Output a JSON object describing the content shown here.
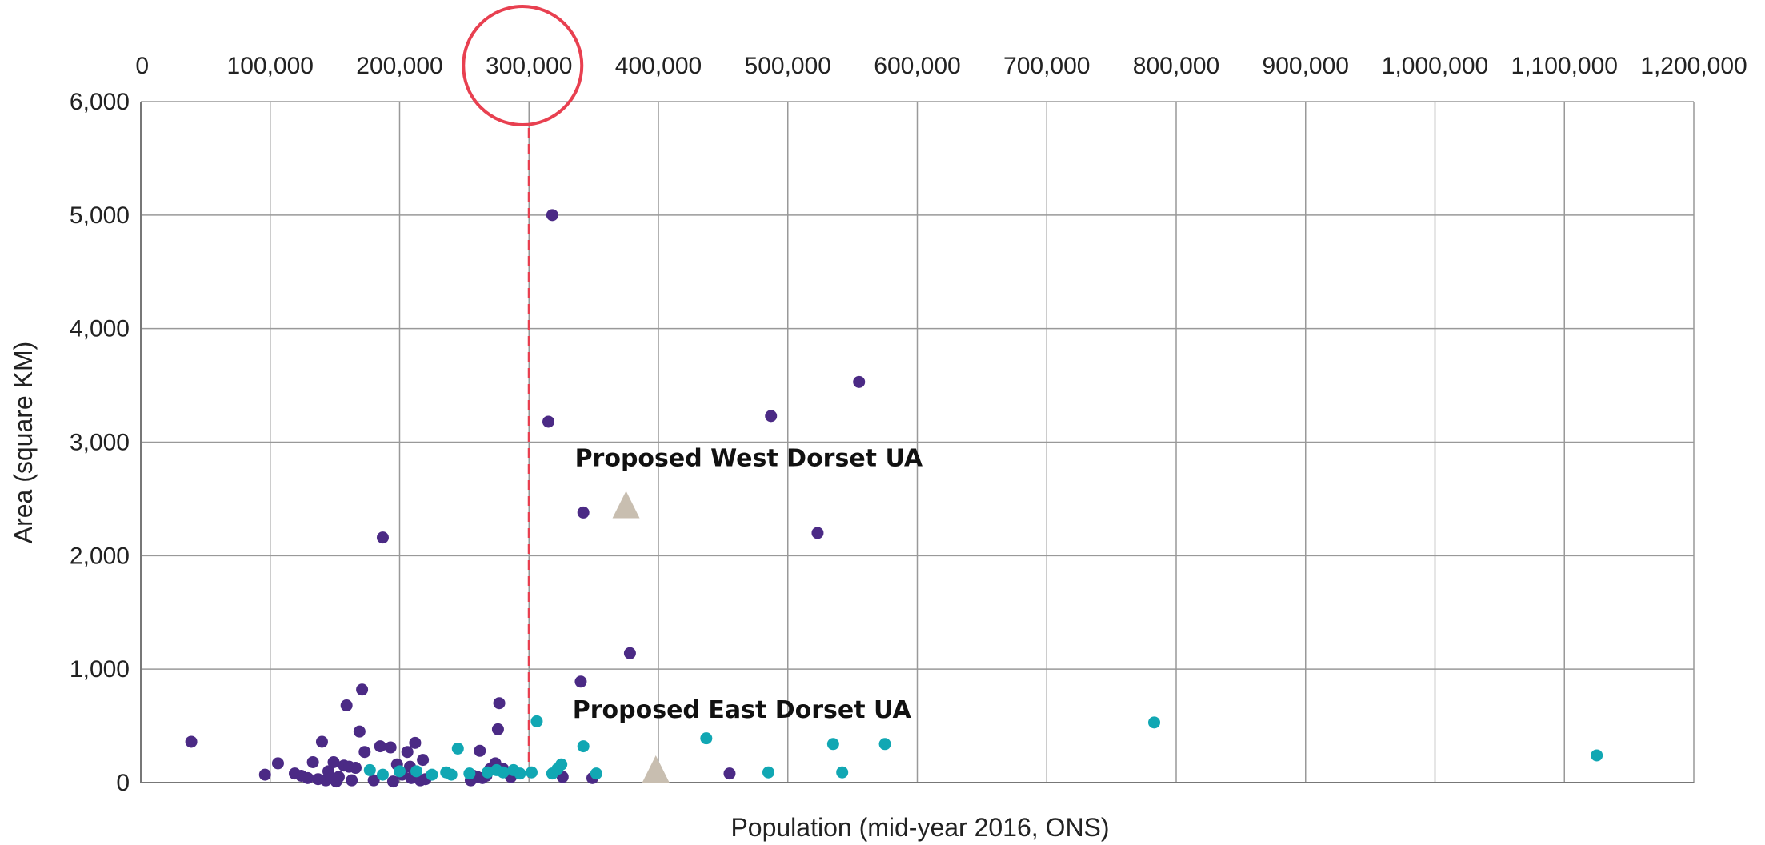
{
  "chart_data": {
    "type": "scatter",
    "title": "",
    "xlabel": "Population (mid-year 2016, ONS)",
    "ylabel": "Area (square KM)",
    "xlim": [
      0,
      1200000
    ],
    "ylim": [
      0,
      6000
    ],
    "x_ticks": [
      0,
      100000,
      200000,
      300000,
      400000,
      500000,
      600000,
      700000,
      800000,
      900000,
      1000000,
      1100000,
      1200000
    ],
    "x_tick_labels": [
      "0",
      "100,000",
      "200,000",
      "300,000",
      "400,000",
      "500,000",
      "600,000",
      "700,000",
      "800,000",
      "900,000",
      "1,000,000",
      "1,100,000",
      "1,200,000"
    ],
    "y_ticks": [
      0,
      1000,
      2000,
      3000,
      4000,
      5000,
      6000
    ],
    "y_tick_labels": [
      "0",
      "1,000",
      "2,000",
      "3,000",
      "4,000",
      "5,000",
      "6,000"
    ],
    "x_axis_position": "top",
    "grid": true,
    "threshold_line": {
      "x": 300000,
      "style": "dashed",
      "color": "#e84050"
    },
    "highlight_circle_on_tick": "300,000",
    "colors": {
      "purple": "#4b2a85",
      "teal": "#11a7b3",
      "triangle": "#c8beb0",
      "circle": "#e84050",
      "grid": "#999999"
    },
    "series": [
      {
        "color": "#4b2a85",
        "points": [
          [
            39000,
            360
          ],
          [
            96000,
            70
          ],
          [
            106000,
            170
          ],
          [
            119000,
            80
          ],
          [
            124000,
            60
          ],
          [
            129000,
            40
          ],
          [
            133000,
            180
          ],
          [
            137000,
            30
          ],
          [
            140000,
            360
          ],
          [
            143000,
            20
          ],
          [
            145000,
            100
          ],
          [
            147000,
            40
          ],
          [
            149000,
            180
          ],
          [
            151000,
            10
          ],
          [
            153000,
            50
          ],
          [
            157000,
            150
          ],
          [
            159000,
            680
          ],
          [
            161000,
            140
          ],
          [
            163000,
            20
          ],
          [
            166000,
            130
          ],
          [
            169000,
            450
          ],
          [
            171000,
            820
          ],
          [
            173000,
            270
          ],
          [
            180000,
            20
          ],
          [
            185000,
            320
          ],
          [
            187000,
            2160
          ],
          [
            193000,
            310
          ],
          [
            195000,
            10
          ],
          [
            198000,
            160
          ],
          [
            202000,
            70
          ],
          [
            206000,
            270
          ],
          [
            208000,
            140
          ],
          [
            209000,
            40
          ],
          [
            212000,
            350
          ],
          [
            216000,
            20
          ],
          [
            218000,
            200
          ],
          [
            220000,
            30
          ],
          [
            255000,
            20
          ],
          [
            257000,
            60
          ],
          [
            260000,
            50
          ],
          [
            262000,
            280
          ],
          [
            264000,
            40
          ],
          [
            267000,
            60
          ],
          [
            270000,
            120
          ],
          [
            274000,
            170
          ],
          [
            276000,
            470
          ],
          [
            277000,
            700
          ],
          [
            280000,
            120
          ],
          [
            286000,
            50
          ],
          [
            315000,
            3180
          ],
          [
            318000,
            5000
          ],
          [
            326000,
            50
          ],
          [
            340000,
            890
          ],
          [
            342000,
            2380
          ],
          [
            349000,
            40
          ],
          [
            378000,
            1140
          ],
          [
            455000,
            80
          ],
          [
            487000,
            3230
          ],
          [
            523000,
            2200
          ],
          [
            555000,
            3530
          ]
        ]
      },
      {
        "color": "#11a7b3",
        "points": [
          [
            177000,
            110
          ],
          [
            187000,
            70
          ],
          [
            200000,
            100
          ],
          [
            213000,
            100
          ],
          [
            225000,
            70
          ],
          [
            236000,
            90
          ],
          [
            240000,
            70
          ],
          [
            245000,
            300
          ],
          [
            254000,
            80
          ],
          [
            268000,
            90
          ],
          [
            275000,
            110
          ],
          [
            280000,
            90
          ],
          [
            288000,
            110
          ],
          [
            293000,
            80
          ],
          [
            302000,
            90
          ],
          [
            306000,
            540
          ],
          [
            318000,
            80
          ],
          [
            322000,
            120
          ],
          [
            325000,
            160
          ],
          [
            342000,
            320
          ],
          [
            352000,
            80
          ],
          [
            437000,
            390
          ],
          [
            485000,
            90
          ],
          [
            535000,
            340
          ],
          [
            542000,
            90
          ],
          [
            575000,
            340
          ],
          [
            783000,
            530
          ],
          [
            1125000,
            240
          ]
        ]
      }
    ],
    "proposed": [
      {
        "label": "Proposed West Dorset UA",
        "x": 375000,
        "y": 2450
      },
      {
        "label": "Proposed East Dorset UA",
        "x": 398000,
        "y": 120
      }
    ]
  }
}
